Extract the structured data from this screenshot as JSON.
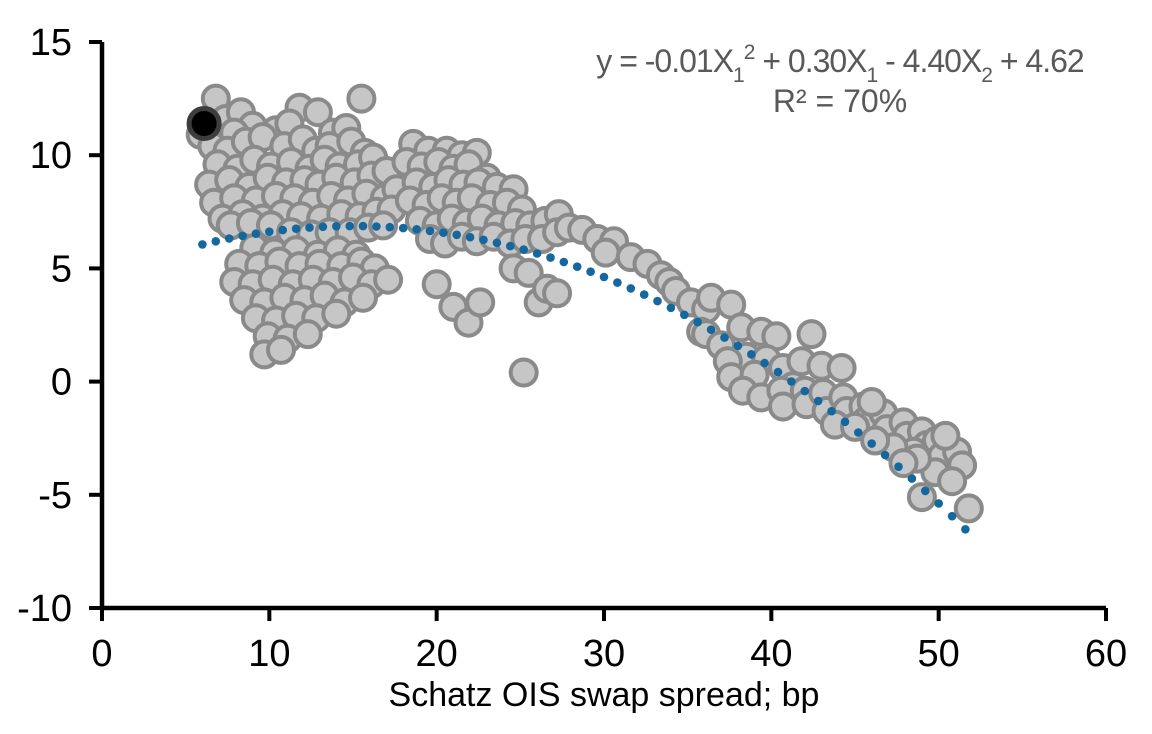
{
  "chart_data": {
    "type": "scatter",
    "title": "",
    "xlabel": "Schatz OIS swap spread; bp",
    "ylabel": "",
    "xlim": [
      0,
      60
    ],
    "ylim": [
      -10,
      15
    ],
    "x_ticks": [
      "0",
      "10",
      "20",
      "30",
      "40",
      "50",
      "60"
    ],
    "x_tick_values": [
      0,
      10,
      20,
      30,
      40,
      50,
      60
    ],
    "y_ticks": [
      "15",
      "10",
      "5",
      "0",
      "-5",
      "-10"
    ],
    "y_tick_values": [
      15,
      10,
      5,
      0,
      -5,
      -10
    ],
    "grid": false,
    "annotation": {
      "equation_text": "y = -0.01X1^2 + 0.30X1 - 4.40X2 + 4.62",
      "equation_parts": [
        {
          "text": "y = -0.01X"
        },
        {
          "text": "1",
          "script": "sub"
        },
        {
          "text": "2",
          "script": "sup"
        },
        {
          "text": " + 0.30X"
        },
        {
          "text": "1",
          "script": "sub"
        },
        {
          "text": " - 4.40X"
        },
        {
          "text": "2",
          "script": "sub"
        },
        {
          "text": " + 4.62"
        }
      ],
      "r2_text": "R² = 70%"
    },
    "colors": {
      "marker_fill": "#C6C6C6",
      "marker_stroke": "#8A8A8A",
      "highlight_fill": "#000000",
      "highlight_stroke": "#3D3D3D",
      "trend": "#15689E",
      "axis": "#000000",
      "annotation_text": "#595959"
    },
    "trendline": {
      "style": "dotted",
      "form": "y = a*x^2 + b*x + c",
      "a": -0.01,
      "b": 0.3,
      "c": 4.62,
      "x_start": 6.0,
      "x_end": 51.7,
      "dot_step": 0.8
    },
    "series": [
      {
        "name": "observations",
        "marker": "circle",
        "points": [
          [
            6.8,
            12.5
          ],
          [
            11.8,
            12.1
          ],
          [
            12.9,
            11.9
          ],
          [
            15.5,
            12.5
          ],
          [
            7.4,
            11.6
          ],
          [
            8.3,
            11.9
          ],
          [
            9.0,
            11.3
          ],
          [
            7.9,
            11.0
          ],
          [
            10.4,
            11.1
          ],
          [
            11.2,
            11.4
          ],
          [
            13.8,
            11.0
          ],
          [
            14.6,
            11.2
          ],
          [
            5.9,
            10.9
          ],
          [
            6.6,
            10.4
          ],
          [
            7.5,
            10.2
          ],
          [
            8.6,
            10.6
          ],
          [
            9.6,
            10.8
          ],
          [
            10.9,
            10.4
          ],
          [
            12.0,
            10.7
          ],
          [
            12.8,
            10.2
          ],
          [
            13.6,
            10.4
          ],
          [
            14.9,
            10.6
          ],
          [
            15.7,
            10.1
          ],
          [
            6.9,
            9.6
          ],
          [
            8.1,
            9.4
          ],
          [
            9.1,
            9.8
          ],
          [
            10.1,
            9.5
          ],
          [
            11.3,
            9.7
          ],
          [
            12.4,
            9.4
          ],
          [
            13.3,
            9.8
          ],
          [
            14.2,
            9.5
          ],
          [
            15.3,
            9.6
          ],
          [
            16.2,
            9.9
          ],
          [
            6.4,
            8.7
          ],
          [
            7.6,
            8.9
          ],
          [
            8.8,
            8.6
          ],
          [
            9.9,
            9.0
          ],
          [
            11.0,
            8.8
          ],
          [
            12.1,
            8.9
          ],
          [
            13.0,
            8.7
          ],
          [
            14.0,
            9.0
          ],
          [
            15.1,
            8.8
          ],
          [
            16.1,
            9.1
          ],
          [
            17.0,
            9.3
          ],
          [
            6.7,
            7.9
          ],
          [
            7.9,
            8.1
          ],
          [
            9.2,
            8.0
          ],
          [
            10.4,
            8.2
          ],
          [
            11.5,
            8.1
          ],
          [
            12.6,
            7.9
          ],
          [
            13.7,
            8.2
          ],
          [
            14.7,
            8.0
          ],
          [
            15.8,
            8.3
          ],
          [
            16.9,
            8.1
          ],
          [
            17.6,
            8.5
          ],
          [
            7.2,
            7.2
          ],
          [
            8.4,
            7.4
          ],
          [
            9.6,
            7.2
          ],
          [
            10.8,
            7.4
          ],
          [
            11.9,
            7.3
          ],
          [
            13.1,
            7.2
          ],
          [
            14.3,
            7.4
          ],
          [
            15.4,
            7.3
          ],
          [
            16.4,
            7.5
          ],
          [
            17.3,
            7.6
          ],
          [
            7.7,
            6.9
          ],
          [
            8.9,
            7.0
          ],
          [
            10.1,
            6.9
          ],
          [
            11.3,
            6.6
          ],
          [
            12.5,
            6.5
          ],
          [
            13.6,
            6.6
          ],
          [
            14.8,
            6.6
          ],
          [
            15.9,
            6.8
          ],
          [
            16.8,
            6.9
          ],
          [
            9.1,
            5.9
          ],
          [
            10.3,
            5.7
          ],
          [
            11.6,
            5.8
          ],
          [
            12.9,
            5.6
          ],
          [
            14.1,
            5.8
          ],
          [
            15.2,
            5.6
          ],
          [
            8.2,
            5.2
          ],
          [
            9.4,
            5.1
          ],
          [
            10.6,
            5.3
          ],
          [
            11.8,
            5.1
          ],
          [
            13.0,
            5.2
          ],
          [
            14.3,
            5.1
          ],
          [
            15.5,
            5.3
          ],
          [
            16.3,
            5.0
          ],
          [
            7.9,
            4.4
          ],
          [
            9.0,
            4.3
          ],
          [
            10.2,
            4.5
          ],
          [
            11.4,
            4.3
          ],
          [
            12.6,
            4.5
          ],
          [
            13.8,
            4.4
          ],
          [
            15.0,
            4.6
          ],
          [
            16.1,
            4.3
          ],
          [
            17.1,
            4.5
          ],
          [
            8.5,
            3.6
          ],
          [
            9.7,
            3.5
          ],
          [
            10.9,
            3.7
          ],
          [
            12.1,
            3.6
          ],
          [
            13.3,
            3.8
          ],
          [
            14.5,
            3.5
          ],
          [
            15.6,
            3.7
          ],
          [
            9.2,
            2.8
          ],
          [
            10.4,
            2.7
          ],
          [
            11.6,
            2.9
          ],
          [
            12.8,
            2.8
          ],
          [
            14.0,
            3.0
          ],
          [
            9.9,
            2.0
          ],
          [
            11.1,
            1.9
          ],
          [
            12.3,
            2.1
          ],
          [
            9.7,
            1.2
          ],
          [
            10.7,
            1.4
          ],
          [
            18.6,
            10.5
          ],
          [
            19.5,
            10.2
          ],
          [
            20.6,
            10.2
          ],
          [
            21.5,
            10.0
          ],
          [
            22.4,
            10.1
          ],
          [
            18.2,
            9.7
          ],
          [
            19.1,
            9.5
          ],
          [
            20.1,
            9.7
          ],
          [
            21.0,
            9.4
          ],
          [
            21.9,
            9.6
          ],
          [
            23.0,
            9.0
          ],
          [
            18.8,
            8.8
          ],
          [
            19.8,
            8.6
          ],
          [
            20.7,
            8.9
          ],
          [
            21.6,
            8.7
          ],
          [
            22.5,
            8.8
          ],
          [
            23.6,
            8.6
          ],
          [
            24.6,
            8.5
          ],
          [
            18.4,
            8.0
          ],
          [
            19.4,
            7.8
          ],
          [
            20.3,
            8.1
          ],
          [
            21.2,
            7.9
          ],
          [
            22.1,
            8.1
          ],
          [
            23.2,
            7.8
          ],
          [
            24.2,
            7.9
          ],
          [
            25.1,
            7.6
          ],
          [
            19.0,
            7.1
          ],
          [
            20.0,
            6.9
          ],
          [
            20.9,
            7.2
          ],
          [
            21.8,
            7.0
          ],
          [
            22.7,
            7.2
          ],
          [
            23.7,
            6.9
          ],
          [
            24.7,
            7.0
          ],
          [
            25.6,
            6.9
          ],
          [
            26.5,
            7.1
          ],
          [
            27.3,
            7.4
          ],
          [
            19.6,
            6.3
          ],
          [
            20.5,
            6.1
          ],
          [
            21.5,
            6.4
          ],
          [
            22.4,
            6.2
          ],
          [
            23.4,
            6.4
          ],
          [
            24.4,
            6.1
          ],
          [
            25.3,
            6.3
          ],
          [
            26.3,
            6.3
          ],
          [
            27.2,
            6.6
          ],
          [
            27.9,
            6.8
          ],
          [
            20.0,
            4.3
          ],
          [
            21.0,
            3.3
          ],
          [
            21.9,
            2.6
          ],
          [
            22.6,
            3.5
          ],
          [
            24.6,
            5.0
          ],
          [
            25.5,
            4.8
          ],
          [
            25.2,
            0.4
          ],
          [
            26.1,
            3.5
          ],
          [
            26.6,
            4.1
          ],
          [
            27.2,
            3.9
          ],
          [
            28.7,
            6.7
          ],
          [
            29.6,
            6.3
          ],
          [
            30.6,
            6.2
          ],
          [
            30.1,
            5.7
          ],
          [
            31.6,
            5.5
          ],
          [
            32.6,
            5.2
          ],
          [
            33.4,
            4.7
          ],
          [
            33.9,
            4.4
          ],
          [
            34.3,
            4.0
          ],
          [
            35.2,
            3.5
          ],
          [
            36.1,
            3.2
          ],
          [
            35.8,
            2.2
          ],
          [
            36.4,
            3.7
          ],
          [
            37.6,
            3.4
          ],
          [
            38.2,
            2.4
          ],
          [
            39.4,
            2.2
          ],
          [
            40.3,
            2.0
          ],
          [
            42.4,
            2.1
          ],
          [
            36.1,
            2.1
          ],
          [
            37.0,
            1.6
          ],
          [
            38.5,
            1.1
          ],
          [
            39.7,
            1.0
          ],
          [
            40.7,
            0.6
          ],
          [
            41.8,
            0.9
          ],
          [
            43.0,
            0.7
          ],
          [
            44.2,
            0.6
          ],
          [
            37.4,
            0.9
          ],
          [
            37.6,
            0.2
          ],
          [
            39.0,
            0.3
          ],
          [
            41.3,
            -0.2
          ],
          [
            38.3,
            -0.4
          ],
          [
            39.4,
            -0.7
          ],
          [
            40.6,
            -0.4
          ],
          [
            40.7,
            -1.1
          ],
          [
            42.0,
            -0.4
          ],
          [
            42.1,
            -1.0
          ],
          [
            43.1,
            -0.5
          ],
          [
            43.3,
            -1.3
          ],
          [
            44.3,
            -0.7
          ],
          [
            44.5,
            -1.3
          ],
          [
            45.5,
            -1.1
          ],
          [
            45.7,
            -1.7
          ],
          [
            46.7,
            -1.4
          ],
          [
            46.9,
            -2.1
          ],
          [
            46.0,
            -0.9
          ],
          [
            43.8,
            -1.9
          ],
          [
            45.0,
            -2.0
          ],
          [
            47.9,
            -1.8
          ],
          [
            48.1,
            -2.4
          ],
          [
            49.0,
            -2.2
          ],
          [
            49.3,
            -2.8
          ],
          [
            48.5,
            -3.1
          ],
          [
            47.3,
            -2.9
          ],
          [
            46.2,
            -2.6
          ],
          [
            49.9,
            -2.6
          ],
          [
            50.2,
            -3.3
          ],
          [
            51.1,
            -3.1
          ],
          [
            51.4,
            -3.7
          ],
          [
            50.4,
            -2.4
          ],
          [
            49.8,
            -4.0
          ],
          [
            50.8,
            -4.4
          ],
          [
            48.7,
            -3.4
          ],
          [
            47.9,
            -3.6
          ],
          [
            49.0,
            -5.1
          ],
          [
            51.8,
            -5.6
          ]
        ]
      },
      {
        "name": "highlighted-observation",
        "marker": "circle",
        "points": [
          [
            6.1,
            11.4
          ]
        ]
      }
    ]
  }
}
